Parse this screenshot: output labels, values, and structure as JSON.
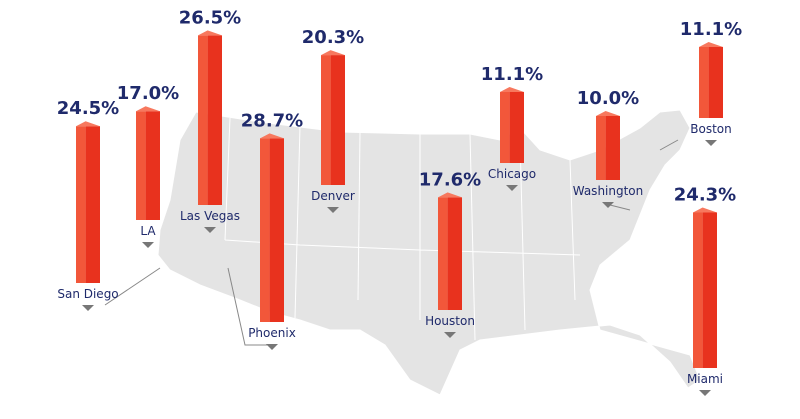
{
  "chart_data": {
    "type": "map-bar",
    "categories": [
      "San Diego",
      "LA",
      "Las Vegas",
      "Phoenix",
      "Denver",
      "Houston",
      "Chicago",
      "Washington",
      "Boston",
      "Miami"
    ],
    "values": [
      24.5,
      17.0,
      26.5,
      28.7,
      20.3,
      17.6,
      11.1,
      10.0,
      11.1,
      24.3
    ],
    "value_labels": [
      "24.5%",
      "17.0%",
      "26.5%",
      "28.7%",
      "20.3%",
      "17.6%",
      "11.1%",
      "10.0%",
      "11.1%",
      "24.3%"
    ],
    "color": "#e8321e"
  }
}
